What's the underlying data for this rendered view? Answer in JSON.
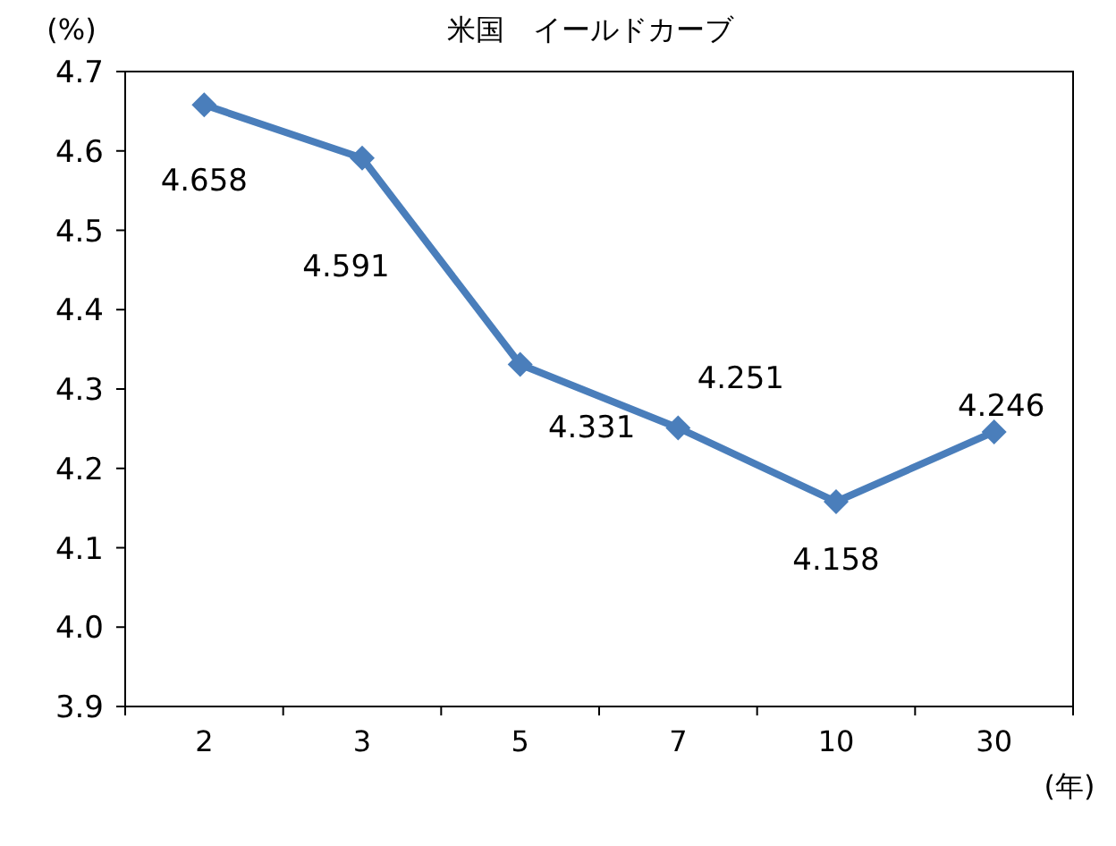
{
  "chart_data": {
    "type": "line",
    "title": "米国　イールドカーブ",
    "ylabel": "(%)",
    "xlabel": "(年)",
    "categories": [
      "2",
      "3",
      "5",
      "7",
      "10",
      "30"
    ],
    "series": [
      {
        "color": "#4a7ebb",
        "values": [
          4.658,
          4.591,
          4.331,
          4.251,
          4.158,
          4.246
        ]
      }
    ],
    "ylim": [
      3.9,
      4.7
    ],
    "yticks": [
      3.9,
      {
        "value": 4.0,
        "label": "4.0"
      },
      4.1,
      4.2,
      4.3,
      4.4,
      4.5,
      4.6,
      4.7
    ],
    "marker": "diamond",
    "line_style": "solid",
    "grid": false,
    "data_labels": true
  }
}
